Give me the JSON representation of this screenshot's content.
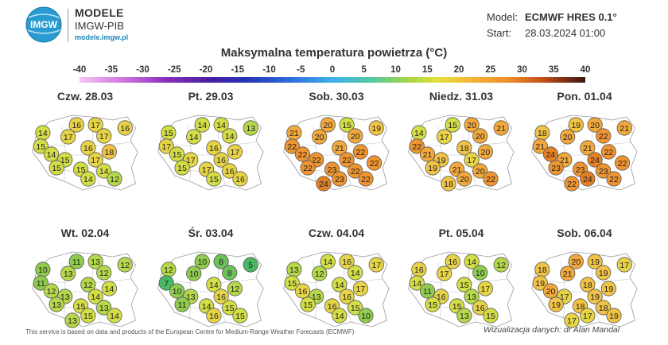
{
  "brand": {
    "badge_text": "IMGW",
    "name": "MODELE",
    "subtitle": "IMGW-PIB",
    "url": "modele.imgw.pl"
  },
  "model": {
    "label": "Model:",
    "value": "ECMWF HRES 0.1°"
  },
  "start": {
    "label": "Start:",
    "value": "28.03.2024 01:00"
  },
  "title": "Maksymalna temperatura powietrza (°C)",
  "scale": {
    "ticks": [
      "-40",
      "-35",
      "-30",
      "-25",
      "-20",
      "-15",
      "-10",
      "-5",
      "0",
      "5",
      "10",
      "15",
      "20",
      "25",
      "30",
      "35",
      "40"
    ]
  },
  "panels": [
    {
      "day": "Czw. 28.03",
      "values": [
        16,
        17,
        16,
        14,
        17,
        17,
        15,
        16,
        14,
        18,
        15,
        17,
        15,
        15,
        14,
        14,
        12
      ]
    },
    {
      "day": "Pt. 29.03",
      "values": [
        14,
        14,
        13,
        15,
        14,
        14,
        17,
        16,
        15,
        17,
        17,
        16,
        15,
        17,
        16,
        15,
        16
      ]
    },
    {
      "day": "Sob. 30.03",
      "values": [
        20,
        15,
        19,
        21,
        20,
        20,
        22,
        21,
        22,
        22,
        22,
        22,
        22,
        23,
        22,
        23,
        22,
        24,
        22
      ]
    },
    {
      "day": "Niedz. 31.03",
      "values": [
        15,
        20,
        21,
        14,
        17,
        20,
        22,
        18,
        21,
        20,
        19,
        17,
        19,
        21,
        20,
        20,
        22,
        18
      ]
    },
    {
      "day": "Pon. 01.04",
      "values": [
        19,
        20,
        21,
        18,
        20,
        22,
        21,
        21,
        24,
        22,
        21,
        24,
        23,
        23,
        23,
        24,
        22,
        22,
        22
      ]
    },
    {
      "day": "Wt. 02.04",
      "values": [
        11,
        13,
        12,
        10,
        13,
        12,
        11,
        12,
        12,
        14,
        13,
        14,
        13,
        15,
        13,
        15,
        14,
        13
      ]
    },
    {
      "day": "Śr. 03.04",
      "values": [
        10,
        8,
        5,
        12,
        10,
        8,
        7,
        14,
        10,
        12,
        13,
        16,
        11,
        14,
        15,
        16,
        15
      ]
    },
    {
      "day": "Czw. 04.04",
      "values": [
        14,
        16,
        17,
        13,
        12,
        14,
        15,
        14,
        16,
        17,
        13,
        16,
        15,
        16,
        15,
        14,
        10
      ]
    },
    {
      "day": "Pt. 05.04",
      "values": [
        16,
        14,
        12,
        16,
        17,
        10,
        14,
        15,
        11,
        17,
        16,
        13,
        15,
        15,
        16,
        13,
        15
      ]
    },
    {
      "day": "Sob. 06.04",
      "values": [
        20,
        19,
        17,
        18,
        21,
        19,
        19,
        18,
        20,
        19,
        17,
        19,
        19,
        18,
        18,
        17,
        19,
        17
      ]
    }
  ],
  "footer": {
    "left": "This service is based on data and products of the European Centre for Medium-Range Weather Forecasts (ECMWF)",
    "right": "Wizualizacja danych: dr Alan Mandal"
  }
}
